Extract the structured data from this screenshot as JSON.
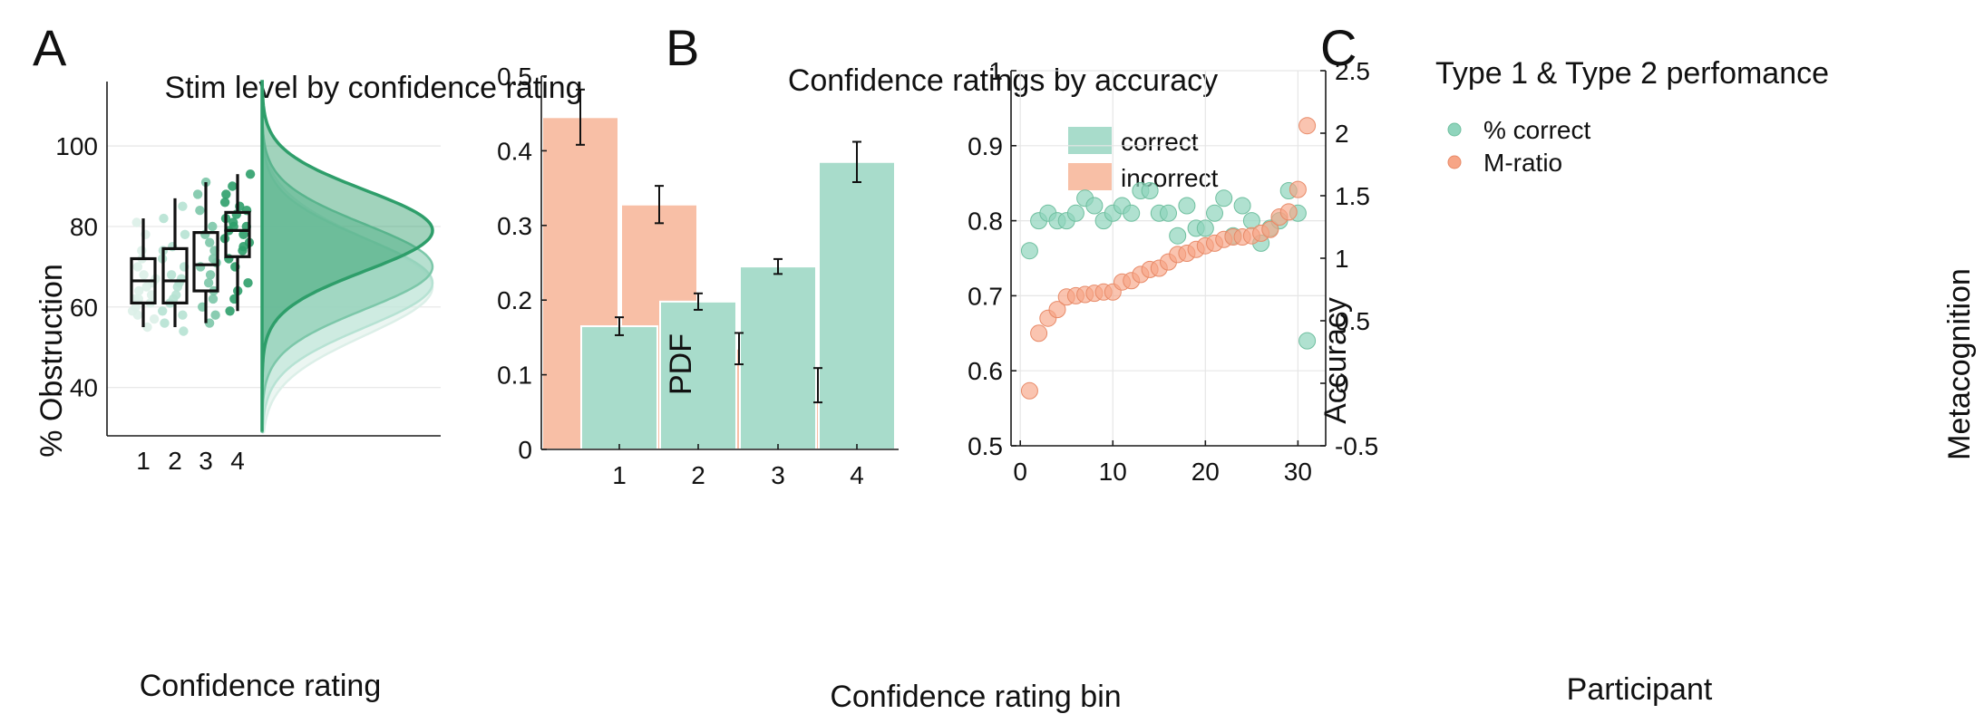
{
  "colors": {
    "rating1": "#dcefe8",
    "rating2": "#b6e2d3",
    "rating3": "#7cc7a9",
    "rating4": "#2e9e6a",
    "correct": "#a8dccb",
    "incorrect": "#f8bfa6",
    "correct_marker": "#8fd4bc",
    "mratio_marker": "#f7a586"
  },
  "chart_data": [
    {
      "panel_label": "A",
      "type": "scatter",
      "title": "Stim level by confidence rating",
      "xlabel": "Confidence rating",
      "ylabel": "% Obstruction",
      "categories": [
        "1",
        "2",
        "3",
        "4"
      ],
      "ylim": [
        28,
        116
      ],
      "yticks": [
        40,
        60,
        80,
        100
      ],
      "grid": "horizontal",
      "boxplots": [
        {
          "category": "1",
          "whisker_low": 55,
          "q1": 61,
          "median": 66.5,
          "q3": 72,
          "whisker_high": 82
        },
        {
          "category": "2",
          "whisker_low": 55,
          "q1": 61,
          "median": 66.5,
          "q3": 74.5,
          "whisker_high": 87
        },
        {
          "category": "3",
          "whisker_low": 56,
          "q1": 64,
          "median": 70.5,
          "q3": 78.5,
          "whisker_high": 91
        },
        {
          "category": "4",
          "whisker_low": 59,
          "q1": 72.5,
          "median": 79,
          "q3": 83.5,
          "whisker_high": 93
        }
      ],
      "points": [
        {
          "category": "1",
          "values": [
            55,
            57,
            58,
            59,
            60,
            61,
            62,
            62,
            63,
            64,
            65,
            66,
            67,
            68,
            70,
            72,
            74,
            78,
            81
          ]
        },
        {
          "category": "2",
          "values": [
            54,
            56,
            58,
            59,
            61,
            62,
            63,
            65,
            66,
            67,
            68,
            70,
            72,
            74,
            75,
            78,
            82,
            85
          ]
        },
        {
          "category": "3",
          "values": [
            56,
            58,
            60,
            62,
            64,
            66,
            68,
            70,
            71,
            72,
            74,
            76,
            78,
            80,
            84,
            88,
            91
          ]
        },
        {
          "category": "4",
          "values": [
            59,
            62,
            64,
            66,
            70,
            72,
            74,
            75,
            76,
            77,
            78,
            79,
            80,
            80,
            81,
            82,
            83,
            84,
            85,
            86,
            88,
            90,
            93
          ]
        }
      ],
      "distributions": [
        {
          "category": "1",
          "mean": 65,
          "sd": 12
        },
        {
          "category": "2",
          "mean": 66,
          "sd": 11
        },
        {
          "category": "3",
          "mean": 70,
          "sd": 10.5
        },
        {
          "category": "4",
          "mean": 79,
          "sd": 10
        }
      ]
    },
    {
      "panel_label": "B",
      "type": "bar",
      "title": "Confidence ratings by accuracy",
      "xlabel": "Confidence rating bin",
      "ylabel": "PDF",
      "categories": [
        "1",
        "2",
        "3",
        "4"
      ],
      "ylim": [
        0,
        0.5
      ],
      "yticks": [
        0,
        0.1,
        0.2,
        0.3,
        0.4,
        0.5
      ],
      "legend_position": "top-right",
      "series": [
        {
          "name": "incorrect",
          "values": [
            0.445,
            0.328,
            0.135,
            0.086
          ],
          "errors": [
            0.037,
            0.025,
            0.021,
            0.023
          ]
        },
        {
          "name": "correct",
          "values": [
            0.165,
            0.198,
            0.245,
            0.385
          ],
          "errors": [
            0.012,
            0.011,
            0.01,
            0.027
          ]
        }
      ]
    },
    {
      "panel_label": "C",
      "type": "scatter",
      "title": "Type 1 & Type 2 perfomance",
      "xlabel": "Participant",
      "ylabel": "Accuracy",
      "y2label": "Metacognition",
      "xlim": [
        -1,
        33
      ],
      "xticks": [
        0,
        10,
        20,
        30
      ],
      "ylim": [
        0.5,
        1
      ],
      "yticks": [
        0.5,
        0.6,
        0.7,
        0.8,
        0.9,
        1
      ],
      "y2lim": [
        -0.5,
        2.5
      ],
      "y2ticks": [
        -0.5,
        0,
        0.5,
        1,
        1.5,
        2,
        2.5
      ],
      "grid": "both",
      "legend_position": "top-left",
      "series": [
        {
          "name": "% correct",
          "axis": "left",
          "x": [
            1,
            2,
            3,
            4,
            5,
            6,
            7,
            8,
            9,
            10,
            11,
            12,
            13,
            14,
            15,
            16,
            17,
            18,
            19,
            20,
            21,
            22,
            23,
            24,
            25,
            26,
            27,
            28,
            29,
            30,
            31
          ],
          "y": [
            0.76,
            0.8,
            0.81,
            0.8,
            0.8,
            0.81,
            0.83,
            0.82,
            0.8,
            0.81,
            0.82,
            0.81,
            0.84,
            0.84,
            0.81,
            0.81,
            0.78,
            0.82,
            0.79,
            0.79,
            0.81,
            0.83,
            0.78,
            0.82,
            0.8,
            0.77,
            0.79,
            0.8,
            0.84,
            0.81,
            0.64
          ]
        },
        {
          "name": "M-ratio",
          "axis": "right",
          "x": [
            1,
            2,
            3,
            4,
            5,
            6,
            7,
            8,
            9,
            10,
            11,
            12,
            13,
            14,
            15,
            16,
            17,
            18,
            19,
            20,
            21,
            22,
            23,
            24,
            25,
            26,
            27,
            28,
            29,
            30,
            31
          ],
          "y": [
            -0.06,
            0.4,
            0.52,
            0.59,
            0.69,
            0.7,
            0.71,
            0.72,
            0.73,
            0.73,
            0.81,
            0.82,
            0.87,
            0.91,
            0.92,
            0.97,
            1.03,
            1.04,
            1.07,
            1.1,
            1.12,
            1.15,
            1.17,
            1.17,
            1.18,
            1.2,
            1.23,
            1.33,
            1.37,
            1.55,
            2.06
          ]
        }
      ]
    }
  ]
}
